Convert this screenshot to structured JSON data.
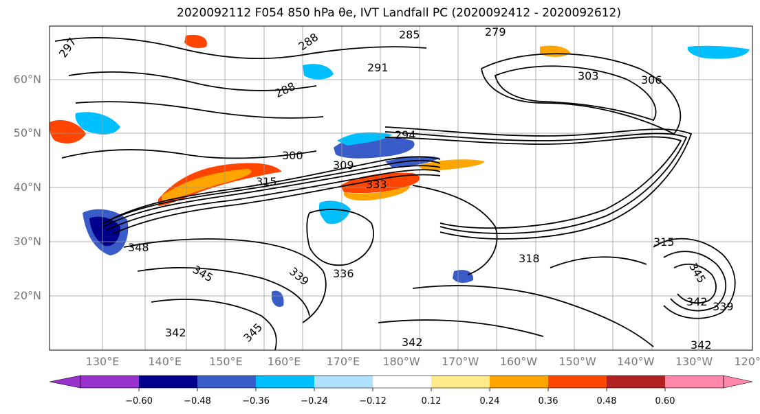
{
  "title": "2020092112 F054 850 hPa θe, IVT Landfall PC (2020092412 - 2020092612)",
  "lat_labels": [
    "60°N",
    "50°N",
    "40°N",
    "30°N",
    "20°N"
  ],
  "lon_labels": [
    "130°E",
    "140°E",
    "150°E",
    "160°E",
    "170°E",
    "180°W",
    "170°W",
    "160°W",
    "150°W",
    "140°W",
    "130°W",
    "120°W"
  ],
  "contour_labels": [
    "297",
    "288",
    "285",
    "279",
    "291",
    "288",
    "303",
    "306",
    "294",
    "300",
    "309",
    "315",
    "333",
    "348",
    "345",
    "336",
    "339",
    "318",
    "315",
    "342",
    "342",
    "345",
    "342",
    "339",
    "342",
    "345"
  ],
  "colorbar": {
    "ticks": [
      "−0.60",
      "−0.48",
      "−0.36",
      "−0.24",
      "−0.12",
      "0.12",
      "0.24",
      "0.36",
      "0.48",
      "0.60"
    ],
    "colors": [
      "#9932cc",
      "#00008b",
      "#3a5cc9",
      "#00bfff",
      "#b0e2ff",
      "#ffffff",
      "#ffeb8a",
      "#ffa500",
      "#ff4500",
      "#b22222",
      "#ff88aa"
    ]
  }
}
